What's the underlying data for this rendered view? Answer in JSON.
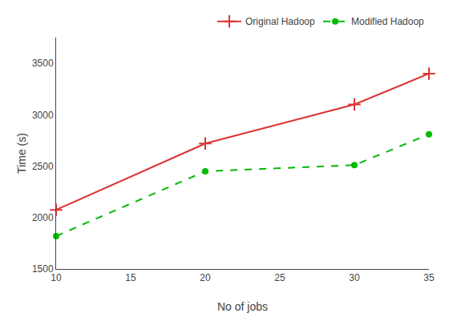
{
  "chart_data": {
    "type": "line",
    "x": [
      10,
      20,
      30,
      35
    ],
    "series": [
      {
        "name": "Original Hadoop",
        "color": "#dd3333",
        "marker": "plus",
        "line_style": "solid",
        "values": [
          2075,
          2720,
          3100,
          3400
        ]
      },
      {
        "name": "Modified Hadoop",
        "color": "#00bb00",
        "marker": "circle",
        "line_style": "dashed",
        "values": [
          1820,
          2450,
          2510,
          2810
        ]
      }
    ],
    "xlabel": "No of jobs",
    "ylabel": "Time (s)",
    "xlim": [
      10,
      35
    ],
    "ylim": [
      1500,
      3750
    ],
    "xticks": [
      10,
      15,
      20,
      25,
      30,
      35
    ],
    "yticks": [
      1500,
      2000,
      2500,
      3000,
      3500
    ],
    "grid": false,
    "legend": "upper right"
  }
}
